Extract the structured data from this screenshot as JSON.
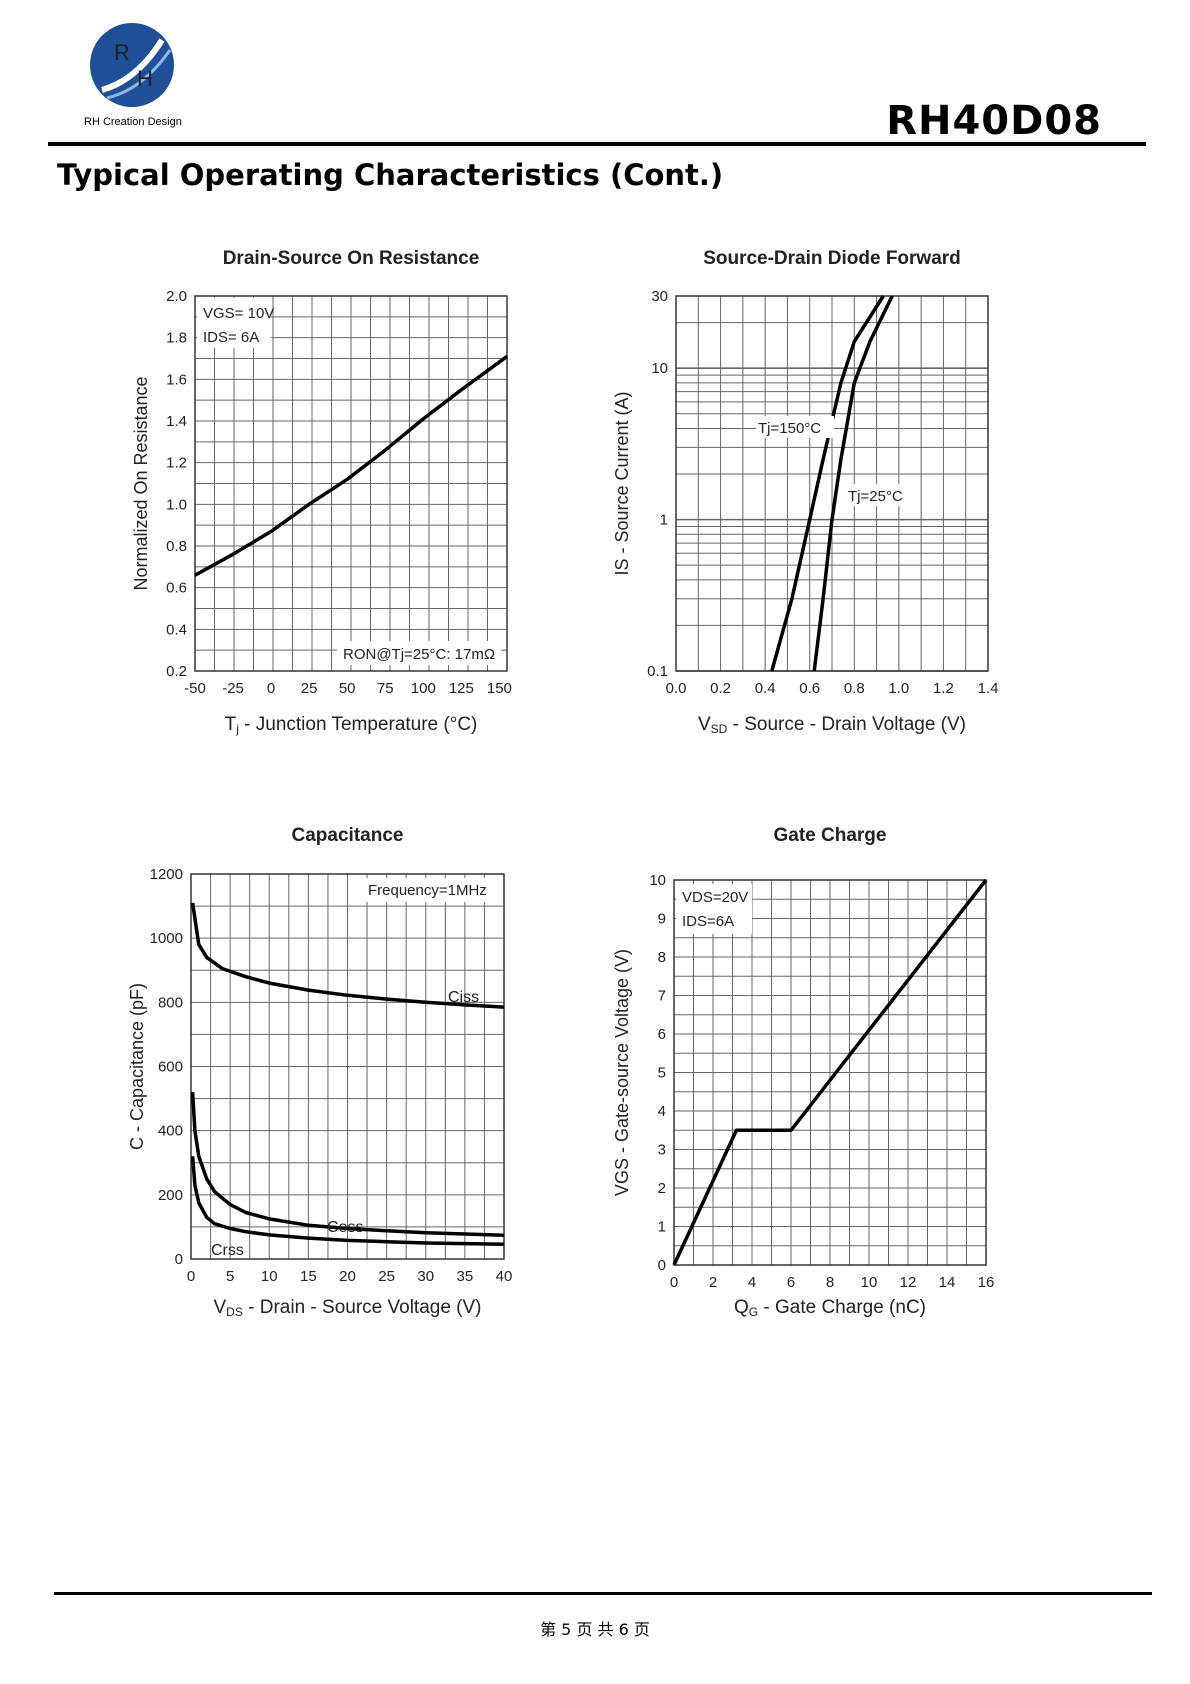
{
  "header": {
    "logo_letters": [
      "R",
      "H"
    ],
    "brand": "RH Creation Design",
    "part_number": "RH40D08",
    "section_title": "Typical Operating Characteristics (Cont.)"
  },
  "footer": {
    "page": "第 5 页 共 6 页"
  },
  "colors": {
    "logo_blue": "#1f4f96",
    "logo_light": "#8fb6e6",
    "grid": "#666666",
    "curve": "#000000"
  },
  "chart_data": [
    {
      "id": "rdson",
      "type": "line",
      "title": "Drain-Source On Resistance",
      "xlabel": "Tj - Junction Temperature (°C)",
      "ylabel": "Normalized On Resistance",
      "xlim": [
        -50,
        155
      ],
      "ylim": [
        0.2,
        2.0
      ],
      "x_ticks": [
        -50,
        -25,
        0,
        25,
        50,
        75,
        100,
        125,
        150
      ],
      "x_tick_labels": [
        "-50",
        "-25",
        "0",
        "25",
        "50",
        "75",
        "100",
        "125",
        "150"
      ],
      "y_ticks": [
        0.2,
        0.4,
        0.6,
        0.8,
        1.0,
        1.2,
        1.4,
        1.6,
        1.8,
        2.0
      ],
      "y_tick_labels": [
        "0.2",
        "0.4",
        "0.6",
        "0.8",
        "1.0",
        "1.2",
        "1.4",
        "1.6",
        "1.8",
        "2.0"
      ],
      "grid": true,
      "annotations": [
        "VGS= 10V",
        "IDS= 6A",
        "RON@Tj=25°C: 17mΩ"
      ],
      "series": [
        {
          "x": [
            -50,
            -25,
            0,
            25,
            50,
            75,
            100,
            125,
            155
          ],
          "y": [
            0.66,
            0.76,
            0.87,
            1.0,
            1.12,
            1.26,
            1.41,
            1.55,
            1.71
          ]
        }
      ]
    },
    {
      "id": "diode",
      "type": "line",
      "title": "Source-Drain Diode Forward",
      "xlabel": "VSD - Source - Drain Voltage (V)",
      "ylabel": "IS - Source Current (A)",
      "xlim": [
        0.0,
        1.4
      ],
      "ylim": [
        0.1,
        30
      ],
      "y_scale": "log",
      "x_ticks": [
        0.0,
        0.2,
        0.4,
        0.6,
        0.8,
        1.0,
        1.2,
        1.4
      ],
      "x_tick_labels": [
        "0.0",
        "0.2",
        "0.4",
        "0.6",
        "0.8",
        "1.0",
        "1.2",
        "1.4"
      ],
      "y_ticks": [
        0.1,
        1,
        10,
        30
      ],
      "y_tick_labels": [
        "0.1",
        "1",
        "10",
        "30"
      ],
      "grid": true,
      "series": [
        {
          "name": "Tj=150°C",
          "x": [
            0.43,
            0.52,
            0.6,
            0.66,
            0.74,
            0.8,
            0.93
          ],
          "y": [
            0.1,
            0.3,
            1.0,
            2.5,
            8.0,
            15,
            30
          ]
        },
        {
          "name": "Tj=25°C",
          "x": [
            0.62,
            0.66,
            0.7,
            0.74,
            0.8,
            0.87,
            0.97
          ],
          "y": [
            0.1,
            0.3,
            1.0,
            2.5,
            8.0,
            15,
            30
          ]
        }
      ]
    },
    {
      "id": "capacitance",
      "type": "line",
      "title": "Capacitance",
      "xlabel": "VDS - Drain - Source Voltage (V)",
      "ylabel": "C - Capacitance (pF)",
      "xlim": [
        0,
        40
      ],
      "ylim": [
        0,
        1200
      ],
      "x_ticks": [
        0,
        5,
        10,
        15,
        20,
        25,
        30,
        35,
        40
      ],
      "x_tick_labels": [
        "0",
        "5",
        "10",
        "15",
        "20",
        "25",
        "30",
        "35",
        "40"
      ],
      "y_ticks": [
        0,
        200,
        400,
        600,
        800,
        1000,
        1200
      ],
      "y_tick_labels": [
        "0",
        "200",
        "400",
        "600",
        "800",
        "1000",
        "1200"
      ],
      "grid": true,
      "annotations": [
        "Frequency=1MHz"
      ],
      "series": [
        {
          "name": "Ciss",
          "x": [
            0.2,
            1,
            2,
            4,
            7,
            10,
            15,
            20,
            25,
            30,
            35,
            40
          ],
          "y": [
            1110,
            980,
            940,
            905,
            880,
            860,
            838,
            822,
            810,
            800,
            792,
            785
          ]
        },
        {
          "name": "Coss",
          "x": [
            0.2,
            0.5,
            1,
            2,
            3,
            5,
            7,
            10,
            15,
            20,
            25,
            30,
            35,
            40
          ],
          "y": [
            520,
            400,
            320,
            250,
            210,
            170,
            145,
            125,
            105,
            95,
            88,
            82,
            78,
            74
          ]
        },
        {
          "name": "Crss",
          "x": [
            0.2,
            0.5,
            1,
            2,
            3,
            5,
            7,
            10,
            15,
            20,
            25,
            30,
            35,
            40
          ],
          "y": [
            320,
            230,
            175,
            130,
            110,
            95,
            85,
            75,
            65,
            58,
            54,
            50,
            48,
            46
          ]
        }
      ]
    },
    {
      "id": "gatecharge",
      "type": "line",
      "title": "Gate Charge",
      "xlabel": "QG - Gate Charge (nC)",
      "ylabel": "VGS - Gate-source Voltage (V)",
      "xlim": [
        0,
        16
      ],
      "ylim": [
        0,
        10
      ],
      "x_ticks": [
        0,
        2,
        4,
        6,
        8,
        10,
        12,
        14,
        16
      ],
      "x_tick_labels": [
        "0",
        "2",
        "4",
        "6",
        "8",
        "10",
        "12",
        "14",
        "16"
      ],
      "y_ticks": [
        0,
        1,
        2,
        3,
        4,
        5,
        6,
        7,
        8,
        9,
        10
      ],
      "y_tick_labels": [
        "0",
        "1",
        "2",
        "3",
        "4",
        "5",
        "6",
        "7",
        "8",
        "9",
        "10"
      ],
      "grid": true,
      "annotations": [
        "VDS=20V",
        "IDS=6A"
      ],
      "series": [
        {
          "x": [
            0,
            3.2,
            6.0,
            16
          ],
          "y": [
            0,
            3.5,
            3.5,
            10
          ]
        }
      ]
    }
  ]
}
